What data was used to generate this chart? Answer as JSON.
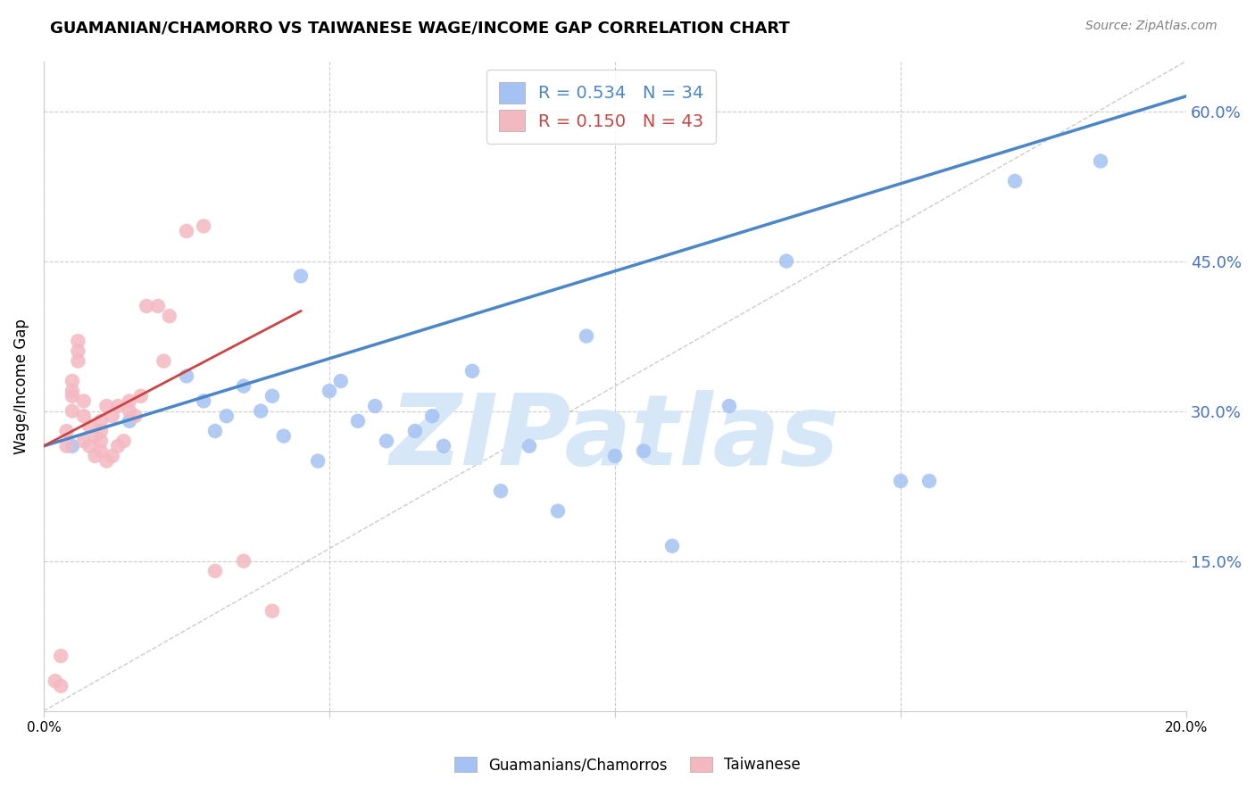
{
  "title": "GUAMANIAN/CHAMORRO VS TAIWANESE WAGE/INCOME GAP CORRELATION CHART",
  "source": "Source: ZipAtlas.com",
  "ylabel": "Wage/Income Gap",
  "xlim": [
    0.0,
    0.2
  ],
  "ylim": [
    0.0,
    0.65
  ],
  "blue_scatter_x": [
    0.005,
    0.015,
    0.025,
    0.028,
    0.03,
    0.032,
    0.035,
    0.038,
    0.04,
    0.042,
    0.045,
    0.048,
    0.05,
    0.052,
    0.055,
    0.058,
    0.06,
    0.065,
    0.068,
    0.07,
    0.075,
    0.08,
    0.085,
    0.09,
    0.095,
    0.1,
    0.105,
    0.11,
    0.12,
    0.13,
    0.15,
    0.155,
    0.17,
    0.185
  ],
  "blue_scatter_y": [
    0.265,
    0.29,
    0.335,
    0.31,
    0.28,
    0.295,
    0.325,
    0.3,
    0.315,
    0.275,
    0.435,
    0.25,
    0.32,
    0.33,
    0.29,
    0.305,
    0.27,
    0.28,
    0.295,
    0.265,
    0.34,
    0.22,
    0.265,
    0.2,
    0.375,
    0.255,
    0.26,
    0.165,
    0.305,
    0.45,
    0.23,
    0.23,
    0.53,
    0.55
  ],
  "pink_scatter_x": [
    0.002,
    0.003,
    0.003,
    0.004,
    0.004,
    0.005,
    0.005,
    0.005,
    0.005,
    0.006,
    0.006,
    0.006,
    0.007,
    0.007,
    0.007,
    0.008,
    0.008,
    0.009,
    0.009,
    0.01,
    0.01,
    0.01,
    0.01,
    0.011,
    0.011,
    0.012,
    0.012,
    0.013,
    0.013,
    0.014,
    0.015,
    0.015,
    0.016,
    0.017,
    0.018,
    0.02,
    0.021,
    0.022,
    0.025,
    0.028,
    0.03,
    0.035,
    0.04
  ],
  "pink_scatter_y": [
    0.03,
    0.055,
    0.025,
    0.265,
    0.28,
    0.3,
    0.315,
    0.32,
    0.33,
    0.35,
    0.36,
    0.37,
    0.27,
    0.295,
    0.31,
    0.265,
    0.285,
    0.255,
    0.275,
    0.26,
    0.27,
    0.28,
    0.29,
    0.25,
    0.305,
    0.255,
    0.295,
    0.265,
    0.305,
    0.27,
    0.3,
    0.31,
    0.295,
    0.315,
    0.405,
    0.405,
    0.35,
    0.395,
    0.48,
    0.485,
    0.14,
    0.15,
    0.1
  ],
  "blue_line_x": [
    0.0,
    0.2
  ],
  "blue_line_y": [
    0.265,
    0.615
  ],
  "pink_line_x": [
    0.0,
    0.045
  ],
  "pink_line_y": [
    0.265,
    0.4
  ],
  "diag_line_x": [
    0.0,
    0.2
  ],
  "diag_line_y": [
    0.0,
    0.65
  ],
  "x_tick_positions": [
    0.0,
    0.05,
    0.1,
    0.15,
    0.2
  ],
  "x_tick_labels": [
    "0.0%",
    "",
    "",
    "",
    "20.0%"
  ],
  "y_tick_positions": [
    0.15,
    0.3,
    0.45,
    0.6
  ],
  "y_tick_labels_right": [
    "15.0%",
    "30.0%",
    "45.0%",
    "60.0%"
  ],
  "grid_color": "#cccccc",
  "blue_color": "#a4c2f4",
  "pink_color": "#f4b8c1",
  "blue_line_color": "#4a86c8",
  "pink_line_color": "#cc4444",
  "diag_color": "#cccccc",
  "right_axis_color": "#4472c4",
  "background_color": "#ffffff",
  "watermark_text": "ZIPatlas",
  "watermark_color": "#d6e8f7",
  "legend_r1": "R = 0.534",
  "legend_n1": "N = 34",
  "legend_r2": "R = 0.150",
  "legend_n2": "N = 43"
}
